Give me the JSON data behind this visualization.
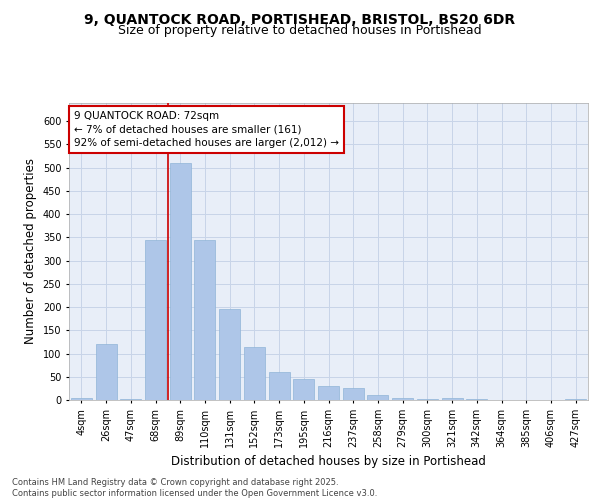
{
  "title_line1": "9, QUANTOCK ROAD, PORTISHEAD, BRISTOL, BS20 6DR",
  "title_line2": "Size of property relative to detached houses in Portishead",
  "xlabel": "Distribution of detached houses by size in Portishead",
  "ylabel": "Number of detached properties",
  "categories": [
    "4sqm",
    "26sqm",
    "47sqm",
    "68sqm",
    "89sqm",
    "110sqm",
    "131sqm",
    "152sqm",
    "173sqm",
    "195sqm",
    "216sqm",
    "237sqm",
    "258sqm",
    "279sqm",
    "300sqm",
    "321sqm",
    "342sqm",
    "364sqm",
    "385sqm",
    "406sqm",
    "427sqm"
  ],
  "values": [
    5,
    120,
    3,
    345,
    510,
    345,
    195,
    115,
    60,
    45,
    30,
    25,
    10,
    5,
    3,
    5,
    2,
    1,
    1,
    1,
    3
  ],
  "bar_color": "#aec6e8",
  "bar_edge_color": "#90b4d8",
  "grid_color": "#c8d4e8",
  "background_color": "#e8eef8",
  "vline_color": "#cc0000",
  "vline_x_index": 3.5,
  "annotation_text": "9 QUANTOCK ROAD: 72sqm\n← 7% of detached houses are smaller (161)\n92% of semi-detached houses are larger (2,012) →",
  "annotation_box_color": "#ffffff",
  "annotation_border_color": "#cc0000",
  "ylim": [
    0,
    640
  ],
  "yticks": [
    0,
    50,
    100,
    150,
    200,
    250,
    300,
    350,
    400,
    450,
    500,
    550,
    600
  ],
  "footnote": "Contains HM Land Registry data © Crown copyright and database right 2025.\nContains public sector information licensed under the Open Government Licence v3.0.",
  "title_fontsize": 10,
  "subtitle_fontsize": 9,
  "axis_label_fontsize": 8.5,
  "tick_fontsize": 7,
  "annotation_fontsize": 7.5
}
